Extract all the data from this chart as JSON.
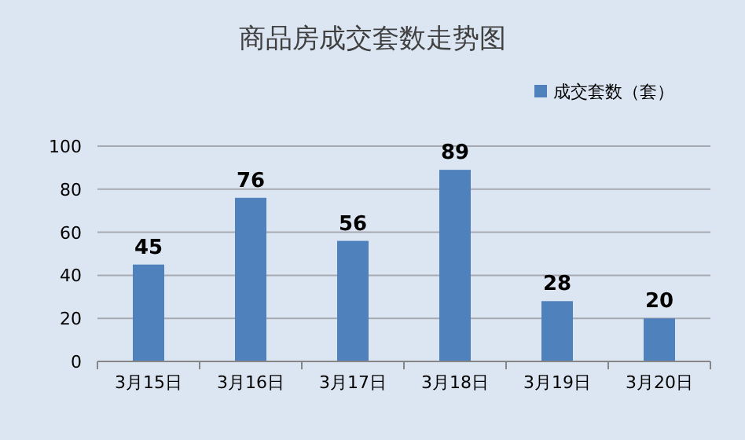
{
  "chart_data": {
    "type": "bar",
    "title": "商品房成交套数走势图",
    "categories": [
      "3月15日",
      "3月16日",
      "3月17日",
      "3月18日",
      "3月19日",
      "3月20日"
    ],
    "series": [
      {
        "name": "成交套数（套）",
        "color": "#4f81bd",
        "values": [
          45,
          76,
          56,
          89,
          28,
          20
        ]
      }
    ],
    "ylim": [
      0,
      100
    ],
    "yticks": [
      0,
      20,
      40,
      60,
      80,
      100
    ],
    "grid": "y",
    "legend": "top right",
    "data_labels": true
  }
}
